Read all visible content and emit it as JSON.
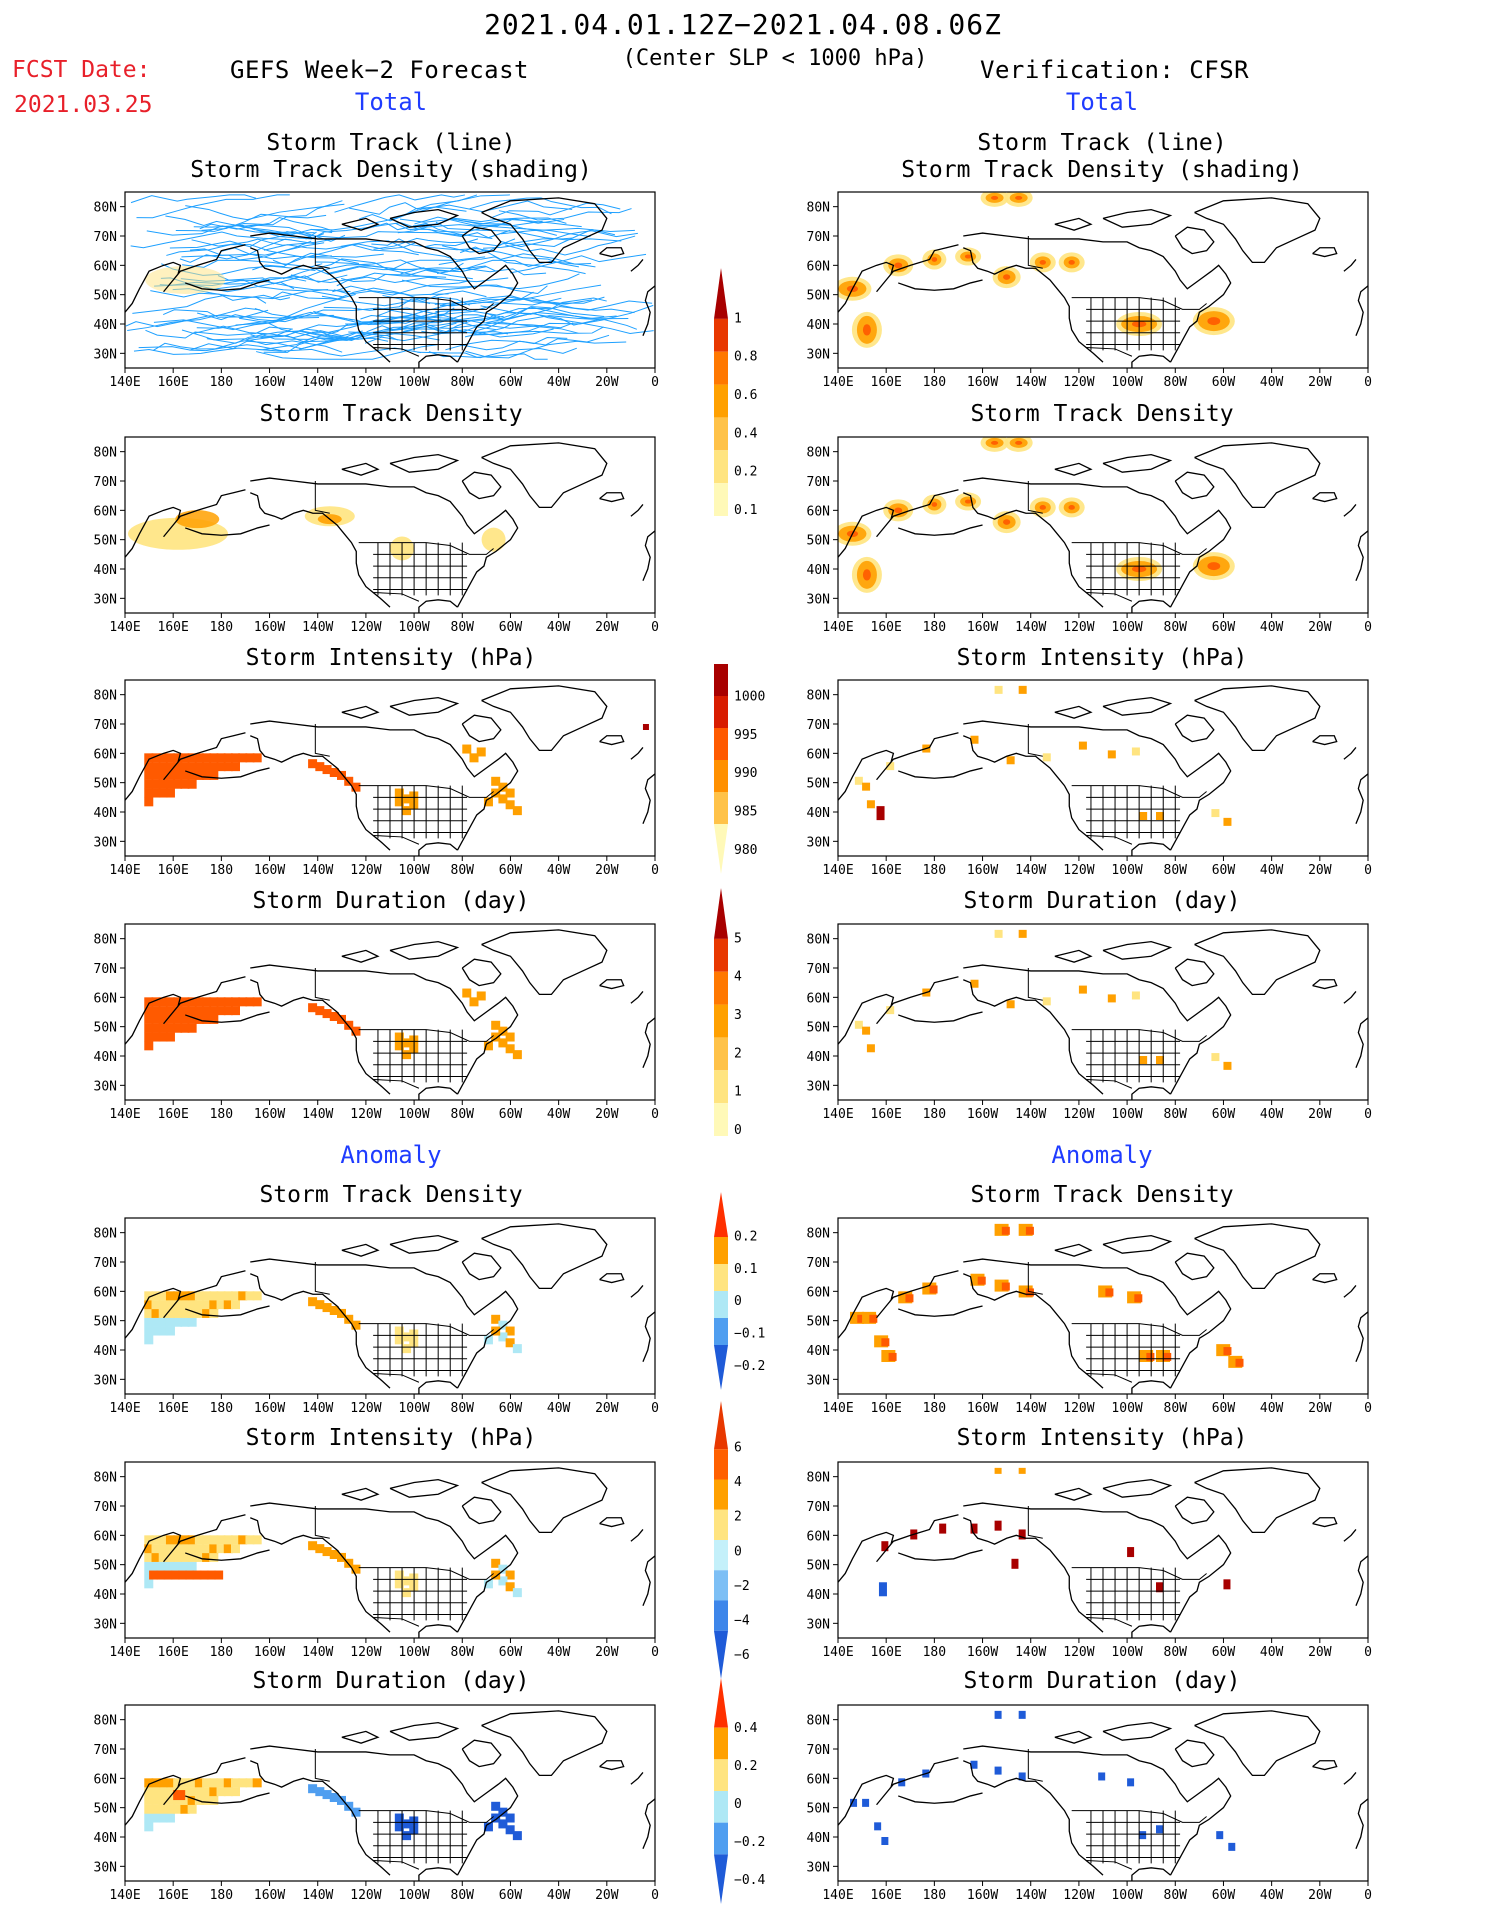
{
  "header": {
    "title": "2021.04.01.12Z−2021.04.08.06Z",
    "subtitle": "(Center SLP < 1000 hPa)",
    "fcst_label": "FCST Date:",
    "fcst_date": "2021.03.25",
    "left_heading": "GEFS Week−2 Forecast",
    "right_heading": "Verification: CFSR"
  },
  "sections": {
    "total": "Total",
    "anomaly": "Anomaly"
  },
  "panel_titles": {
    "track_line": "Storm Track (line)",
    "track_shading": "Storm Track Density (shading)",
    "density": "Storm Track Density",
    "intensity": "Storm Intensity (hPa)",
    "duration": "Storm Duration (day)"
  },
  "axes": {
    "lon_ticks": [
      "140E",
      "160E",
      "180",
      "160W",
      "140W",
      "120W",
      "100W",
      "80W",
      "60W",
      "40W",
      "20W",
      "0"
    ],
    "lat_ticks": [
      "80N",
      "70N",
      "60N",
      "50N",
      "40N",
      "30N"
    ]
  },
  "colorbars": {
    "density_total": {
      "labels": [
        "1",
        "0.8",
        "0.6",
        "0.4",
        "0.2",
        "0.1"
      ],
      "colors": [
        "#fff9b8",
        "#ffe480",
        "#ffc248",
        "#ffa000",
        "#ff7800",
        "#e83800",
        "#a80000"
      ]
    },
    "intensity_total": {
      "labels": [
        "1000",
        "995",
        "990",
        "985",
        "980"
      ],
      "colors": [
        "#fff9b8",
        "#ffc248",
        "#ff9000",
        "#ff5a00",
        "#d81c00",
        "#a80000"
      ]
    },
    "duration_total": {
      "labels": [
        "5",
        "4",
        "3",
        "2",
        "1",
        "0"
      ],
      "colors": [
        "#fff9b8",
        "#ffe480",
        "#ffc248",
        "#ffa000",
        "#ff7800",
        "#e83800",
        "#a80000"
      ]
    },
    "density_anom": {
      "labels": [
        "0.2",
        "0.1",
        "0",
        "−0.1",
        "−0.2"
      ],
      "colors": [
        "#1f5bd8",
        "#4f9ef0",
        "#aee8f5",
        "#ffe480",
        "#ffa000",
        "#ff3000"
      ]
    },
    "intensity_anom": {
      "labels": [
        "6",
        "4",
        "2",
        "0",
        "−2",
        "−4",
        "−6"
      ],
      "colors": [
        "#1f5bd8",
        "#3d86ea",
        "#7dbff5",
        "#c4f0fa",
        "#ffe480",
        "#ffa000",
        "#ff6000",
        "#e83800"
      ]
    },
    "duration_anom": {
      "labels": [
        "0.4",
        "0.2",
        "0",
        "−0.2",
        "−0.4"
      ],
      "colors": [
        "#1f5bd8",
        "#4f9ef0",
        "#aee8f5",
        "#ffe480",
        "#ffa000",
        "#ff3000"
      ]
    }
  },
  "colors": {
    "track_line": "#1ea0ff",
    "pos_light": "#ffe480",
    "pos_mid": "#ffa000",
    "pos_strong": "#ff5a00",
    "pos_dark": "#a80000",
    "neg_light": "#aee8f5",
    "neg_mid": "#4f9ef0",
    "neg_dark": "#1f5bd8"
  }
}
